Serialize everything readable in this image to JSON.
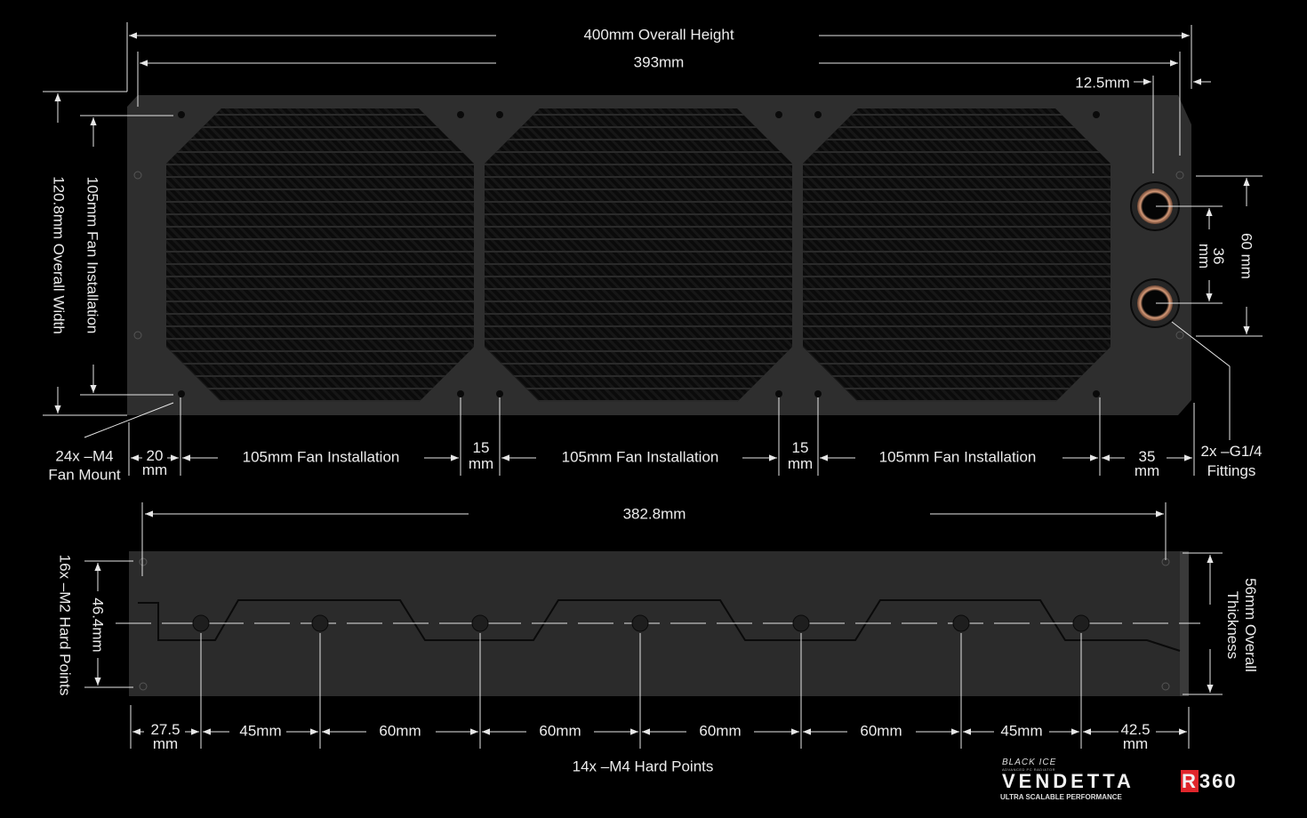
{
  "top_view": {
    "overall_height": "400mm Overall Height",
    "inner_length": "393mm",
    "end_offset": "12.5mm",
    "overall_width": "120.8mm Overall Width",
    "fan_install_vertical": "105mm Fan Installation",
    "fan_mount_line1": "24x –M4",
    "fan_mount_line2": "Fan Mount",
    "left_margin_num": "20",
    "left_margin_unit": "mm",
    "fan_install_1": "105mm Fan Installation",
    "gap_1_num": "15",
    "gap_1_unit": "mm",
    "fan_install_2": "105mm Fan Installation",
    "gap_2_num": "15",
    "gap_2_unit": "mm",
    "fan_install_3": "105mm Fan Installation",
    "right_margin_num": "35",
    "right_margin_unit": "mm",
    "fittings_line1": "2x –G1/4",
    "fittings_line2": "Fittings",
    "port_outer_spacing": "60 mm",
    "port_spacing_num": "36",
    "port_spacing_unit": "mm"
  },
  "side_view": {
    "length": "382.8mm",
    "hard_points_m2": "16x –M2 Hard Points",
    "m2_spacing": "46.4mm",
    "thickness_line1": "56mm Overall",
    "thickness_line2": "Thickness",
    "spacings": [
      {
        "num": "27.5",
        "unit": "mm"
      },
      {
        "label": "45mm"
      },
      {
        "label": "60mm"
      },
      {
        "label": "60mm"
      },
      {
        "label": "60mm"
      },
      {
        "label": "60mm"
      },
      {
        "label": "45mm"
      },
      {
        "num": "42.5",
        "unit": "mm"
      }
    ],
    "hard_points_m4": "14x –M4 Hard Points"
  },
  "logo": {
    "brand": "BLACK ICE",
    "brand_sub": "ADVANCED PC RADIATOR",
    "product": "VENDETTA",
    "model_r": "R",
    "model_num": "360",
    "tagline": "ULTRA SCALABLE PERFORMANCE"
  },
  "colors": {
    "background": "#000000",
    "radiator": "#2e2e2e",
    "lines": "#e6e6e6",
    "logo_accent": "#e0262b",
    "fitting_copper": "#c98a6a"
  }
}
